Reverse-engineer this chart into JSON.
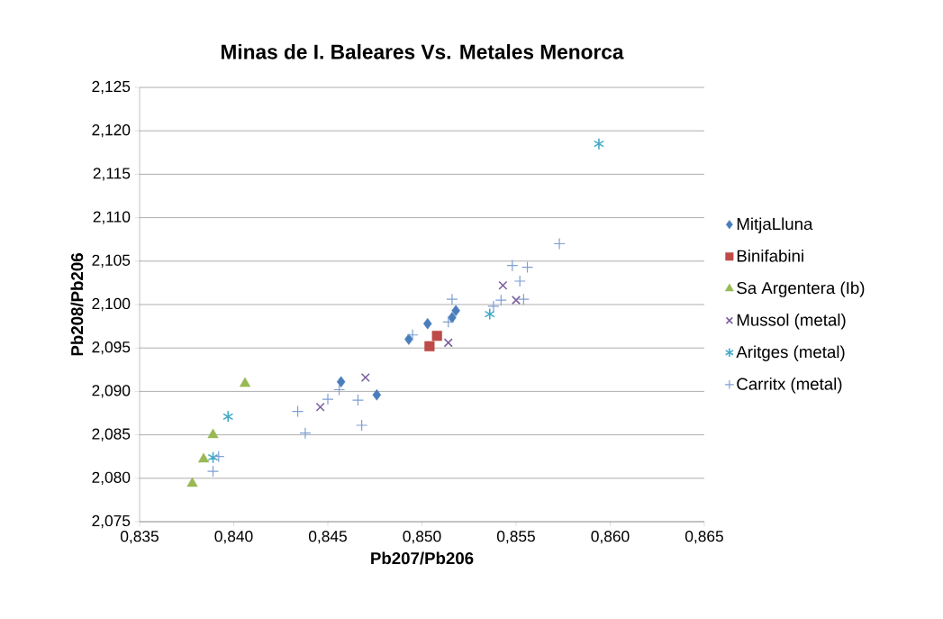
{
  "chart_data": {
    "type": "scatter",
    "title": "Minas de I. Baleares  Vs. Metales Menorca",
    "xlabel": "Pb207/Pb206",
    "ylabel": "Pb208/Pb206",
    "xlim": [
      0.835,
      0.865
    ],
    "ylim": [
      2.075,
      2.125
    ],
    "xticks": [
      {
        "value": 0.835,
        "label": "0,835"
      },
      {
        "value": 0.84,
        "label": "0,840"
      },
      {
        "value": 0.845,
        "label": "0,845"
      },
      {
        "value": 0.85,
        "label": "0,850"
      },
      {
        "value": 0.855,
        "label": "0,855"
      },
      {
        "value": 0.86,
        "label": "0,860"
      },
      {
        "value": 0.865,
        "label": "0,865"
      }
    ],
    "yticks": [
      {
        "value": 2.075,
        "label": "2,075"
      },
      {
        "value": 2.08,
        "label": "2,080"
      },
      {
        "value": 2.085,
        "label": "2,085"
      },
      {
        "value": 2.09,
        "label": "2,090"
      },
      {
        "value": 2.095,
        "label": "2,095"
      },
      {
        "value": 2.1,
        "label": "2,100"
      },
      {
        "value": 2.105,
        "label": "2,105"
      },
      {
        "value": 2.11,
        "label": "2,110"
      },
      {
        "value": 2.115,
        "label": "2,115"
      },
      {
        "value": 2.12,
        "label": "2,120"
      },
      {
        "value": 2.125,
        "label": "2,125"
      }
    ],
    "grid": "y",
    "legend": "right",
    "series": [
      {
        "name": "MitjaLluna",
        "color": "#4a7ebb",
        "marker": "diamond",
        "x": [
          0.8457,
          0.8476,
          0.8493,
          0.8503,
          0.8516,
          0.8518
        ],
        "values": [
          2.0911,
          2.0896,
          2.096,
          2.0978,
          2.0985,
          2.0993
        ]
      },
      {
        "name": "Binifabini",
        "color": "#be4b48",
        "marker": "square",
        "x": [
          0.8504,
          0.8508
        ],
        "values": [
          2.0952,
          2.0964
        ]
      },
      {
        "name": "Sa Argentera (Ib)",
        "color": "#98b954",
        "marker": "triangle",
        "x": [
          0.8378,
          0.8384,
          0.8389,
          0.8406
        ],
        "values": [
          2.0794,
          2.0822,
          2.085,
          2.0909
        ]
      },
      {
        "name": "Mussol (metal)",
        "color": "#7d60a0",
        "marker": "cross",
        "x": [
          0.8446,
          0.847,
          0.8514,
          0.8543,
          0.855
        ],
        "values": [
          2.0882,
          2.0916,
          2.0956,
          2.1022,
          2.1005
        ]
      },
      {
        "name": "Aritges (metal)",
        "color": "#46aac5",
        "x": [
          0.8389,
          0.8397,
          0.8536,
          0.8594
        ],
        "values": [
          2.0824,
          2.0871,
          2.0989,
          2.1185
        ]
      },
      {
        "name": "Carritx (metal)",
        "color": "#7f9fd3",
        "marker": "plus",
        "x": [
          0.8389,
          0.8392,
          0.8434,
          0.8438,
          0.845,
          0.8456,
          0.8466,
          0.8468,
          0.8495,
          0.8514,
          0.8516,
          0.8538,
          0.8542,
          0.8548,
          0.8552,
          0.8554,
          0.8556,
          0.8573
        ],
        "values": [
          2.0808,
          2.0825,
          2.0877,
          2.0852,
          2.0891,
          2.0902,
          2.089,
          2.0861,
          2.0965,
          2.098,
          2.1006,
          2.0998,
          2.1005,
          2.1045,
          2.1027,
          2.1006,
          2.1043,
          2.107
        ]
      }
    ]
  }
}
